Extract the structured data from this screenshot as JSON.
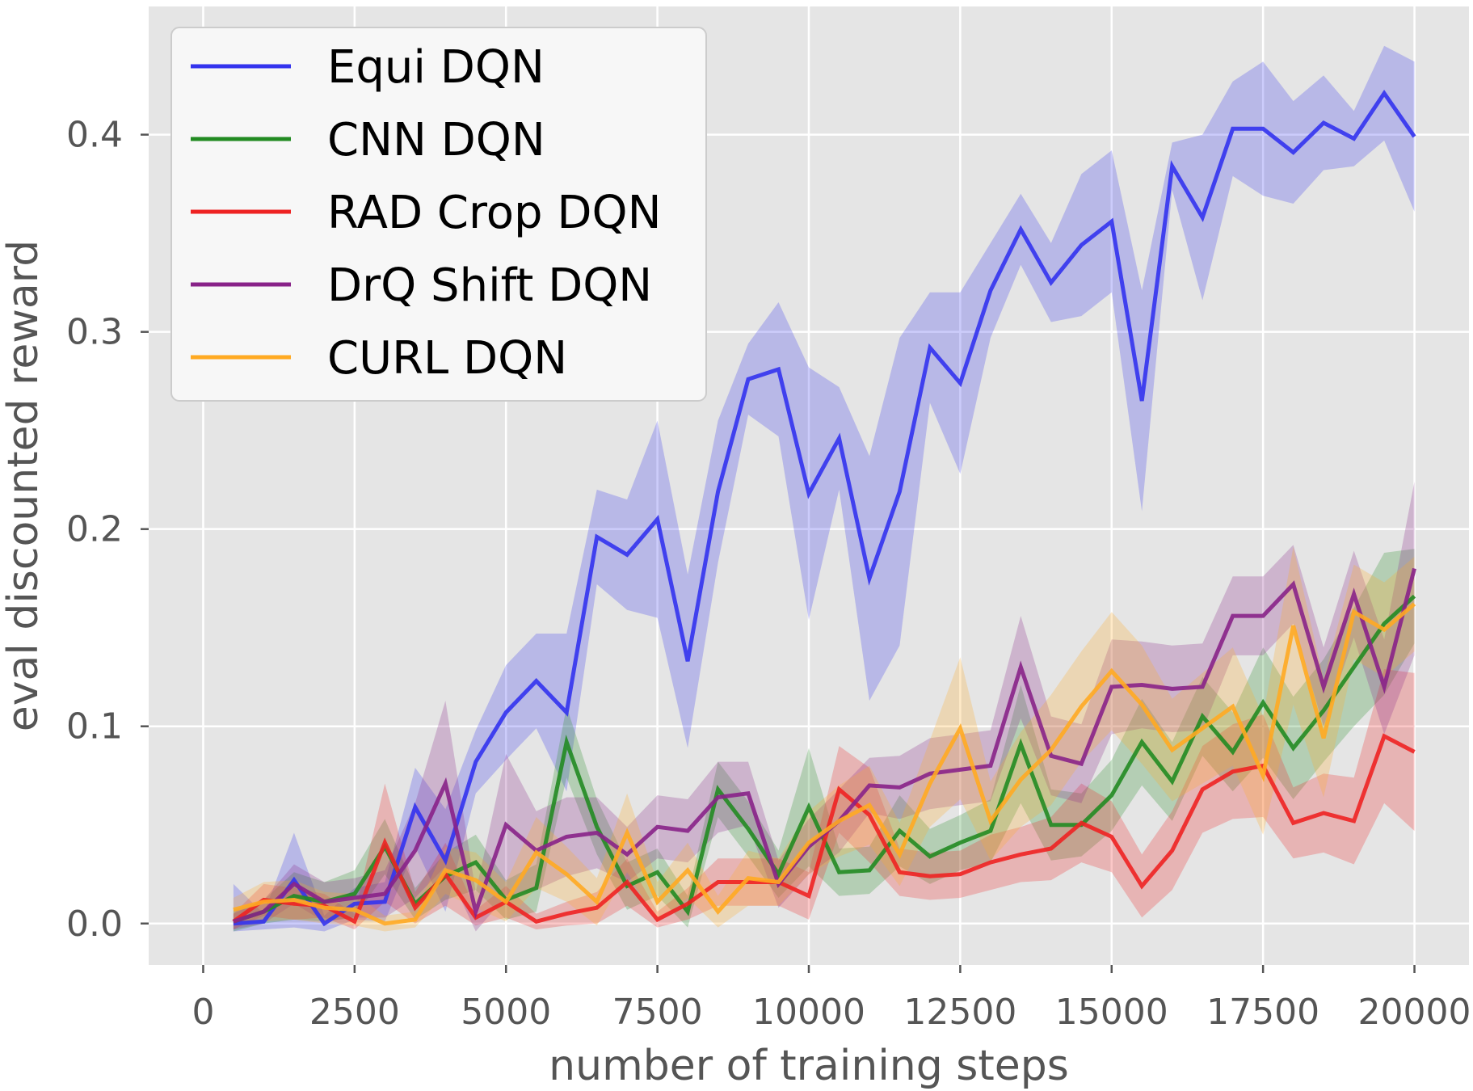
{
  "chart_data": {
    "type": "line",
    "title": "",
    "xlabel": "number of training steps",
    "ylabel": "eval discounted reward",
    "xlim": [
      -900,
      20900
    ],
    "ylim": [
      -0.021,
      0.465
    ],
    "xticks": [
      0,
      2500,
      5000,
      7500,
      10000,
      12500,
      15000,
      17500,
      20000
    ],
    "xtick_labels": [
      "0",
      "2500",
      "5000",
      "7500",
      "10000",
      "12500",
      "15000",
      "17500",
      "20000"
    ],
    "yticks": [
      0.0,
      0.1,
      0.2,
      0.3,
      0.4
    ],
    "ytick_labels": [
      "0.0",
      "0.1",
      "0.2",
      "0.3",
      "0.4"
    ],
    "grid": true,
    "legend_position": "top-left",
    "x": [
      500,
      1000,
      1500,
      2000,
      2500,
      3000,
      3500,
      4000,
      4500,
      5000,
      5500,
      6000,
      6500,
      7000,
      7500,
      8000,
      8500,
      9000,
      9500,
      10000,
      10500,
      11000,
      11500,
      12000,
      12500,
      13000,
      13500,
      14000,
      14500,
      15000,
      15500,
      16000,
      16500,
      17000,
      17500,
      18000,
      18500,
      19000,
      19500,
      20000
    ],
    "series": [
      {
        "name": "Equi DQN",
        "color": "#3333ee",
        "values": [
          0.0,
          0.001,
          0.022,
          0.0,
          0.01,
          0.011,
          0.059,
          0.032,
          0.082,
          0.107,
          0.123,
          0.107,
          0.196,
          0.187,
          0.205,
          0.133,
          0.219,
          0.276,
          0.281,
          0.218,
          0.246,
          0.175,
          0.219,
          0.292,
          0.274,
          0.321,
          0.352,
          0.325,
          0.344,
          0.356,
          0.265,
          0.384,
          0.358,
          0.403,
          0.403,
          0.391,
          0.406,
          0.398,
          0.421,
          0.399
        ],
        "band": [
          0.02,
          0.004,
          0.024,
          0.004,
          0.008,
          0.01,
          0.02,
          0.026,
          0.016,
          0.024,
          0.024,
          0.04,
          0.024,
          0.028,
          0.05,
          0.044,
          0.036,
          0.018,
          0.034,
          0.064,
          0.026,
          0.062,
          0.078,
          0.028,
          0.046,
          0.024,
          0.018,
          0.02,
          0.036,
          0.036,
          0.056,
          0.012,
          0.042,
          0.024,
          0.034,
          0.026,
          0.024,
          0.014,
          0.024,
          0.038
        ]
      },
      {
        "name": "CNN DQN",
        "color": "#228b22",
        "values": [
          0.001,
          0.006,
          0.014,
          0.011,
          0.015,
          0.039,
          0.01,
          0.024,
          0.031,
          0.012,
          0.018,
          0.092,
          0.049,
          0.019,
          0.026,
          0.006,
          0.068,
          0.048,
          0.025,
          0.059,
          0.026,
          0.027,
          0.047,
          0.034,
          0.041,
          0.047,
          0.091,
          0.05,
          0.05,
          0.065,
          0.092,
          0.072,
          0.105,
          0.087,
          0.112,
          0.089,
          0.108,
          0.13,
          0.152,
          0.166
        ],
        "band": [
          0.006,
          0.006,
          0.012,
          0.01,
          0.012,
          0.014,
          0.008,
          0.012,
          0.014,
          0.01,
          0.012,
          0.018,
          0.014,
          0.012,
          0.012,
          0.008,
          0.014,
          0.014,
          0.012,
          0.03,
          0.012,
          0.012,
          0.018,
          0.014,
          0.014,
          0.016,
          0.03,
          0.018,
          0.016,
          0.018,
          0.022,
          0.02,
          0.02,
          0.02,
          0.028,
          0.026,
          0.026,
          0.03,
          0.036,
          0.024
        ]
      },
      {
        "name": "RAD Crop DQN",
        "color": "#ee2222",
        "values": [
          0.001,
          0.012,
          0.01,
          0.009,
          0.001,
          0.041,
          0.008,
          0.025,
          0.003,
          0.011,
          0.001,
          0.005,
          0.008,
          0.021,
          0.002,
          0.01,
          0.021,
          0.021,
          0.021,
          0.014,
          0.068,
          0.055,
          0.026,
          0.024,
          0.025,
          0.031,
          0.035,
          0.038,
          0.051,
          0.044,
          0.019,
          0.037,
          0.068,
          0.077,
          0.08,
          0.051,
          0.056,
          0.052,
          0.095,
          0.087
        ],
        "band": [
          0.004,
          0.008,
          0.008,
          0.006,
          0.004,
          0.03,
          0.008,
          0.016,
          0.004,
          0.008,
          0.004,
          0.006,
          0.008,
          0.012,
          0.004,
          0.008,
          0.012,
          0.012,
          0.012,
          0.012,
          0.022,
          0.024,
          0.012,
          0.012,
          0.012,
          0.014,
          0.014,
          0.016,
          0.02,
          0.018,
          0.016,
          0.02,
          0.022,
          0.024,
          0.026,
          0.018,
          0.02,
          0.022,
          0.034,
          0.04
        ]
      },
      {
        "name": "DrQ Shift DQN",
        "color": "#882288",
        "values": [
          0.001,
          0.006,
          0.02,
          0.011,
          0.013,
          0.015,
          0.037,
          0.071,
          0.006,
          0.05,
          0.037,
          0.044,
          0.046,
          0.035,
          0.049,
          0.047,
          0.064,
          0.066,
          0.02,
          0.039,
          0.052,
          0.07,
          0.069,
          0.076,
          0.078,
          0.08,
          0.13,
          0.085,
          0.081,
          0.12,
          0.121,
          0.119,
          0.12,
          0.156,
          0.156,
          0.172,
          0.12,
          0.167,
          0.12,
          0.18
        ],
        "band": [
          0.004,
          0.006,
          0.01,
          0.01,
          0.01,
          0.012,
          0.024,
          0.042,
          0.01,
          0.036,
          0.02,
          0.02,
          0.018,
          0.014,
          0.016,
          0.016,
          0.018,
          0.016,
          0.012,
          0.014,
          0.016,
          0.014,
          0.016,
          0.018,
          0.018,
          0.018,
          0.026,
          0.02,
          0.02,
          0.024,
          0.022,
          0.022,
          0.022,
          0.02,
          0.02,
          0.02,
          0.02,
          0.022,
          0.024,
          0.044
        ]
      },
      {
        "name": "CURL DQN",
        "color": "#ffaa22",
        "values": [
          0.007,
          0.011,
          0.012,
          0.008,
          0.007,
          0.0,
          0.002,
          0.027,
          0.022,
          0.011,
          0.036,
          0.025,
          0.011,
          0.046,
          0.011,
          0.027,
          0.006,
          0.023,
          0.021,
          0.041,
          0.052,
          0.06,
          0.035,
          0.071,
          0.099,
          0.052,
          0.073,
          0.088,
          0.11,
          0.128,
          0.111,
          0.088,
          0.099,
          0.11,
          0.075,
          0.151,
          0.094,
          0.158,
          0.149,
          0.162
        ],
        "band": [
          0.006,
          0.01,
          0.01,
          0.008,
          0.008,
          0.004,
          0.004,
          0.012,
          0.014,
          0.01,
          0.018,
          0.014,
          0.012,
          0.02,
          0.01,
          0.014,
          0.008,
          0.014,
          0.012,
          0.016,
          0.018,
          0.02,
          0.016,
          0.022,
          0.036,
          0.02,
          0.024,
          0.028,
          0.028,
          0.03,
          0.03,
          0.026,
          0.028,
          0.03,
          0.03,
          0.04,
          0.03,
          0.024,
          0.024,
          0.024
        ]
      }
    ]
  }
}
